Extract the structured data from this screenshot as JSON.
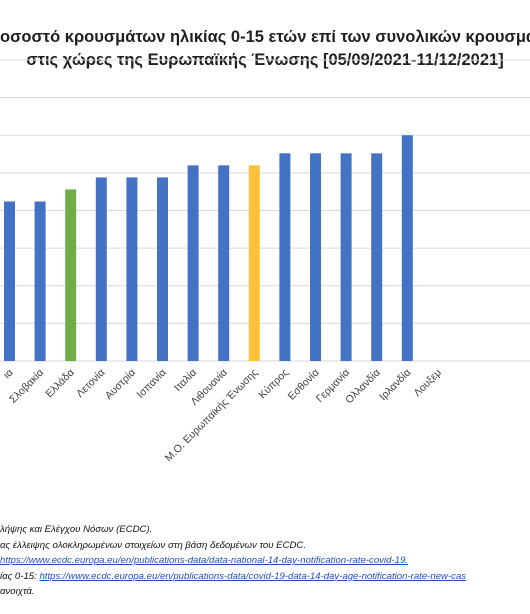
{
  "chart_data": {
    "type": "bar",
    "title_lines": [
      "οσοστό κρουσμάτων ηλικίας 0-15 ετών επί των συνολικών κρουσμάτ",
      "στις χώρες της Ευρωπαϊκής Ένωσης [05/09/2021-11/12/2021]"
    ],
    "categories": [
      "ια",
      "Σλοβακία",
      "Ελλάδα",
      "Λετονία",
      "Αυστρία",
      "Ισπανία",
      "Ιταλία",
      "Λιθουανία",
      "Μ.Ο. Ευρωπαϊκής Ένωσης",
      "Κύπρος",
      "Εσθονία",
      "Γερμανία",
      "Ολλανδία",
      "Ιρλανδία",
      "Λουξεμ"
    ],
    "values": [
      10.6,
      10.6,
      11.4,
      12.2,
      12.2,
      12.2,
      13.0,
      13.0,
      13.0,
      13.8,
      13.8,
      13.8,
      13.8,
      15.0,
      null
    ],
    "bar_colors": [
      "#4472C4",
      "#4472C4",
      "#70AD47",
      "#4472C4",
      "#4472C4",
      "#4472C4",
      "#4472C4",
      "#4472C4",
      "#FFC03A",
      "#4472C4",
      "#4472C4",
      "#4472C4",
      "#4472C4",
      "#4472C4",
      "#4472C4"
    ],
    "ylim": [
      0,
      20
    ],
    "gridline_step": 2.5,
    "grid": true,
    "colors": {
      "default": "#4472C4",
      "greece": "#70AD47",
      "eu_average": "#FFC03A",
      "grid": "#d9d9d9"
    }
  },
  "notes": [
    {
      "text": "λήψης και Ελέγχου Νόσων (ECDC).",
      "link": ""
    },
    {
      "text": "ας έλλειψης ολοκληρωμένων στοιχείων στη βάση δεδομένων του ECDC.",
      "link": ""
    },
    {
      "text": "",
      "link": "https://www.ecdc.europa.eu/en/publications-data/data-national-14-day-notification-rate-covid-19."
    },
    {
      "text": "ίας 0-15: ",
      "link": "https://www.ecdc.europa.eu/en/publications-data/covid-19-data-14-day-age-notification-rate-new-cas"
    },
    {
      "text": "ανοιχτά.",
      "link": ""
    }
  ]
}
